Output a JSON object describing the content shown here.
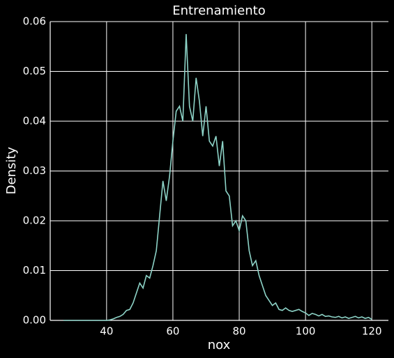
{
  "chart_data": {
    "type": "line",
    "title": "Entrenamiento",
    "x_label": "nox",
    "y_label": "Density",
    "x": [
      27,
      30,
      35,
      40,
      41,
      42,
      43,
      44,
      45,
      46,
      47,
      48,
      49,
      50,
      51,
      52,
      53,
      54,
      55,
      56,
      57,
      58,
      59,
      60,
      61,
      62,
      63,
      64,
      65,
      66,
      67,
      68,
      69,
      70,
      71,
      72,
      73,
      74,
      75,
      76,
      77,
      78,
      79,
      80,
      81,
      82,
      83,
      84,
      85,
      86,
      87,
      88,
      89,
      90,
      91,
      92,
      93,
      94,
      95,
      96,
      97,
      98,
      99,
      100,
      101,
      102,
      103,
      104,
      105,
      106,
      107,
      108,
      109,
      110,
      111,
      112,
      113,
      114,
      115,
      116,
      117,
      118,
      119,
      120
    ],
    "series": [
      {
        "name": "nox",
        "color": "#8dd3c7",
        "values": [
          0,
          0,
          0,
          0,
          0.0001,
          0.0003,
          0.0006,
          0.0008,
          0.0012,
          0.002,
          0.0022,
          0.0035,
          0.0055,
          0.0075,
          0.0065,
          0.009,
          0.0085,
          0.011,
          0.014,
          0.021,
          0.028,
          0.024,
          0.029,
          0.036,
          0.042,
          0.043,
          0.04,
          0.0575,
          0.043,
          0.04,
          0.0487,
          0.044,
          0.037,
          0.043,
          0.036,
          0.035,
          0.037,
          0.031,
          0.036,
          0.026,
          0.025,
          0.019,
          0.02,
          0.018,
          0.021,
          0.02,
          0.014,
          0.011,
          0.012,
          0.009,
          0.007,
          0.005,
          0.004,
          0.003,
          0.0035,
          0.0022,
          0.002,
          0.0025,
          0.002,
          0.0018,
          0.002,
          0.0022,
          0.0018,
          0.0015,
          0.001,
          0.0014,
          0.0012,
          0.0009,
          0.0012,
          0.0008,
          0.0009,
          0.0007,
          0.0006,
          0.0008,
          0.0005,
          0.0007,
          0.0004,
          0.0006,
          0.0008,
          0.0005,
          0.0007,
          0.0004,
          0.0006,
          0.0002
        ]
      }
    ],
    "xlim": [
      23,
      125
    ],
    "xticks": [
      40,
      60,
      80,
      100,
      120
    ],
    "ylim": [
      0,
      0.06
    ],
    "yticks": [
      {
        "value": 0,
        "label": "0.00"
      },
      {
        "value": 0.01,
        "label": "0.01"
      },
      {
        "value": 0.02,
        "label": "0.02"
      },
      {
        "value": 0.03,
        "label": "0.03"
      },
      {
        "value": 0.04,
        "label": "0.04"
      },
      {
        "value": 0.05,
        "label": "0.05"
      },
      {
        "value": 0.06,
        "label": "0.06"
      }
    ],
    "grid": true
  }
}
